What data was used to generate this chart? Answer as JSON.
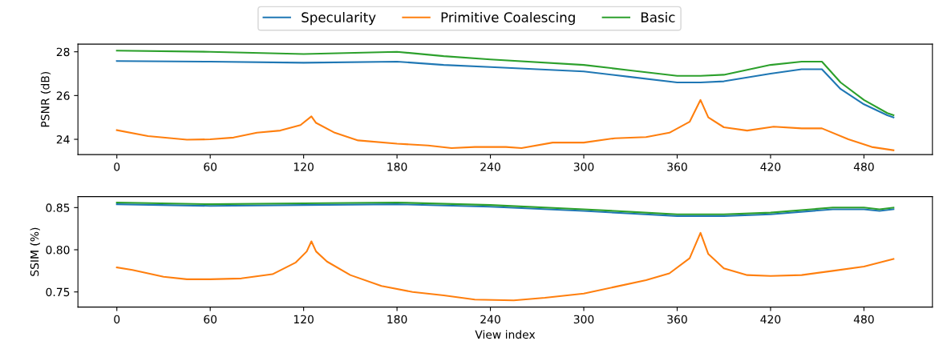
{
  "chart_data": [
    {
      "type": "line",
      "ylabel": "PSNR (dB)",
      "legend": "top",
      "grid": false,
      "marker": "none",
      "line_style": "solid",
      "xlim": [
        -25,
        524
      ],
      "xticks": [
        0,
        60,
        120,
        180,
        240,
        300,
        360,
        420,
        480
      ],
      "ylim": [
        23.3,
        28.35
      ],
      "yticks": [
        24,
        26,
        28
      ],
      "series": [
        {
          "name": "Specularity",
          "color": "#1f77b4",
          "x": [
            0,
            60,
            120,
            180,
            210,
            240,
            300,
            330,
            360,
            375,
            390,
            420,
            440,
            453,
            465,
            480,
            495,
            499
          ],
          "values": [
            27.58,
            27.55,
            27.5,
            27.55,
            27.4,
            27.3,
            27.1,
            26.85,
            26.6,
            26.6,
            26.65,
            27.0,
            27.2,
            27.2,
            26.3,
            25.6,
            25.1,
            25.0
          ]
        },
        {
          "name": "Primitive Coalescing",
          "color": "#ff7f0e",
          "x": [
            0,
            20,
            45,
            60,
            75,
            90,
            105,
            118,
            125,
            128,
            140,
            155,
            180,
            200,
            215,
            230,
            250,
            260,
            280,
            300,
            320,
            340,
            355,
            368,
            375,
            380,
            390,
            405,
            422,
            440,
            453,
            470,
            485,
            499
          ],
          "values": [
            24.42,
            24.15,
            23.98,
            24.0,
            24.08,
            24.3,
            24.4,
            24.65,
            25.05,
            24.75,
            24.3,
            23.95,
            23.8,
            23.72,
            23.6,
            23.65,
            23.65,
            23.6,
            23.85,
            23.85,
            24.05,
            24.1,
            24.3,
            24.8,
            25.8,
            25.0,
            24.55,
            24.4,
            24.58,
            24.5,
            24.5,
            24.0,
            23.65,
            23.5
          ]
        },
        {
          "name": "Basic",
          "color": "#2ca02c",
          "x": [
            0,
            60,
            120,
            180,
            210,
            240,
            300,
            330,
            360,
            375,
            390,
            420,
            440,
            453,
            465,
            480,
            495,
            499
          ],
          "values": [
            28.05,
            28.0,
            27.9,
            28.0,
            27.8,
            27.65,
            27.4,
            27.15,
            26.9,
            26.9,
            26.95,
            27.4,
            27.55,
            27.55,
            26.6,
            25.8,
            25.2,
            25.1
          ]
        }
      ]
    },
    {
      "type": "line",
      "ylabel": "SSIM (%)",
      "xlabel": "View index",
      "grid": false,
      "marker": "none",
      "line_style": "solid",
      "xlim": [
        -25,
        524
      ],
      "xticks": [
        0,
        60,
        120,
        180,
        240,
        300,
        360,
        420,
        480
      ],
      "ylim": [
        0.732,
        0.863
      ],
      "yticks": [
        {
          "value": 0.75,
          "label": "0.75"
        },
        {
          "value": 0.8,
          "label": "0.80"
        },
        {
          "value": 0.85,
          "label": "0.85"
        }
      ],
      "series": [
        {
          "color": "#1f77b4",
          "x": [
            0,
            60,
            120,
            180,
            240,
            300,
            330,
            360,
            390,
            420,
            460,
            480,
            490,
            499
          ],
          "values": [
            0.854,
            0.852,
            0.853,
            0.854,
            0.851,
            0.846,
            0.843,
            0.84,
            0.84,
            0.842,
            0.848,
            0.848,
            0.846,
            0.848
          ]
        },
        {
          "color": "#ff7f0e",
          "x": [
            0,
            10,
            30,
            45,
            60,
            80,
            100,
            115,
            122,
            125,
            128,
            135,
            150,
            170,
            190,
            210,
            230,
            255,
            275,
            300,
            320,
            340,
            355,
            368,
            375,
            380,
            390,
            405,
            420,
            440,
            460,
            480,
            499
          ],
          "values": [
            0.779,
            0.776,
            0.768,
            0.765,
            0.765,
            0.766,
            0.771,
            0.785,
            0.798,
            0.81,
            0.798,
            0.786,
            0.77,
            0.757,
            0.75,
            0.746,
            0.741,
            0.74,
            0.743,
            0.748,
            0.756,
            0.764,
            0.772,
            0.79,
            0.82,
            0.795,
            0.778,
            0.77,
            0.769,
            0.77,
            0.775,
            0.78,
            0.789
          ]
        },
        {
          "color": "#2ca02c",
          "x": [
            0,
            60,
            120,
            180,
            240,
            300,
            330,
            360,
            390,
            420,
            460,
            480,
            490,
            499
          ],
          "values": [
            0.856,
            0.854,
            0.855,
            0.856,
            0.853,
            0.848,
            0.845,
            0.842,
            0.842,
            0.844,
            0.85,
            0.85,
            0.848,
            0.85
          ]
        }
      ]
    }
  ]
}
